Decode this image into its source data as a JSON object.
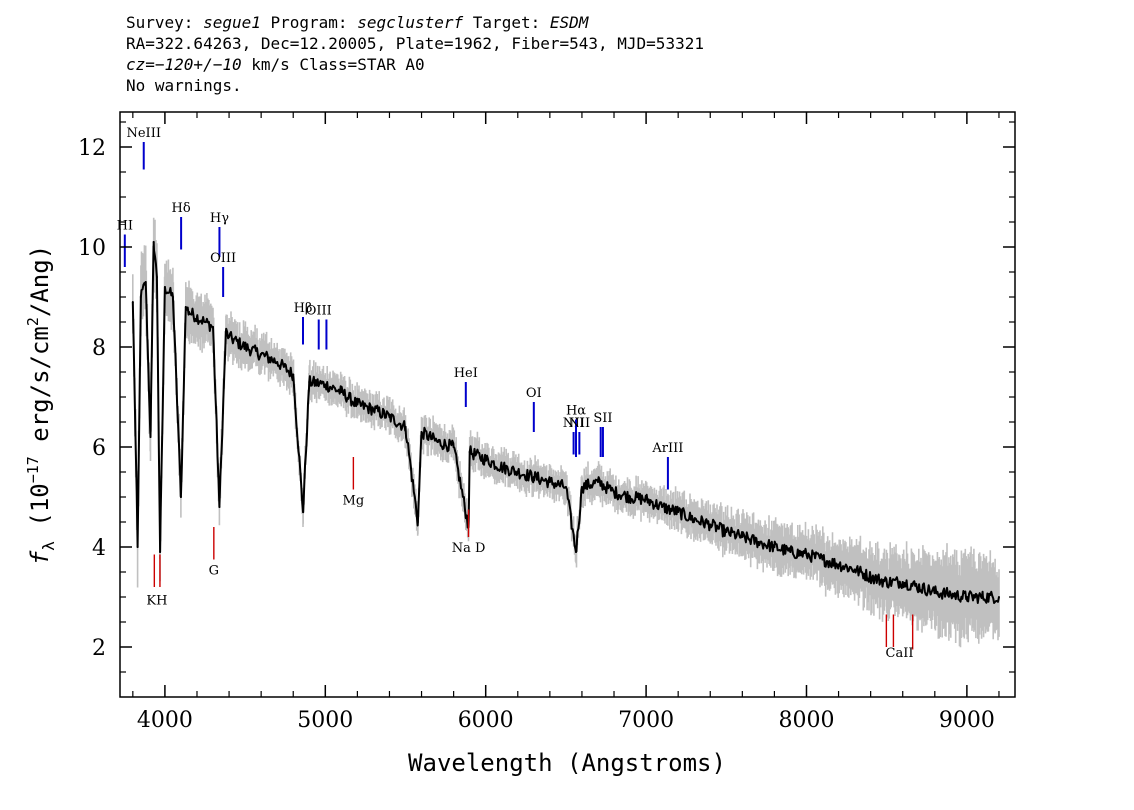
{
  "header": {
    "line1": {
      "survey_label": "Survey: ",
      "survey": "segue1",
      "program_label": " Program: ",
      "program": "segclusterf",
      "target_label": " Target: ",
      "target": "ESDM"
    },
    "line2": "RA=322.64263, Dec=12.20005, Plate=1962, Fiber=543, MJD=53321",
    "line3": {
      "cz": "cz=−120+/−10",
      "rest": " km/s Class=STAR A0"
    },
    "line4": "No warnings."
  },
  "colors": {
    "emission": "#0000cc",
    "absorption": "#cc0000",
    "flux": "#000000",
    "error": "#c0c0c0"
  },
  "chart_data": {
    "type": "line",
    "title": "",
    "xlabel": "Wavelength (Angstroms)",
    "ylabel": "fλ (10⁻¹⁷ erg/s/cm²/Ang)",
    "xlim": [
      3720,
      9300
    ],
    "ylim": [
      1,
      12.7
    ],
    "x_ticks": [
      4000,
      5000,
      6000,
      7000,
      8000,
      9000
    ],
    "y_ticks": [
      2,
      4,
      6,
      8,
      10,
      12
    ],
    "grid": false,
    "series": [
      {
        "role": "flux",
        "x": [
          3800,
          3830,
          3850,
          3880,
          3910,
          3930,
          3950,
          3970,
          4000,
          4050,
          4100,
          4130,
          4150,
          4200,
          4250,
          4300,
          4340,
          4380,
          4400,
          4500,
          4600,
          4700,
          4800,
          4861,
          4900,
          5000,
          5100,
          5200,
          5300,
          5400,
          5500,
          5577,
          5600,
          5700,
          5800,
          5893,
          5900,
          6000,
          6100,
          6200,
          6300,
          6400,
          6500,
          6563,
          6600,
          6700,
          6800,
          6900,
          7000,
          7100,
          7200,
          7300,
          7400,
          7500,
          7600,
          7700,
          7800,
          7900,
          8000,
          8100,
          8200,
          8300,
          8400,
          8500,
          8600,
          8700,
          8800,
          8900,
          9000,
          9100,
          9200
        ],
        "y": [
          8.9,
          4.0,
          9.0,
          9.3,
          6.2,
          10.1,
          9.4,
          3.9,
          9.2,
          9.0,
          5.0,
          8.8,
          8.7,
          8.6,
          8.5,
          8.4,
          4.8,
          8.3,
          8.2,
          8.0,
          7.85,
          7.7,
          7.45,
          4.7,
          7.3,
          7.25,
          7.1,
          6.85,
          6.75,
          6.6,
          6.4,
          4.5,
          6.3,
          6.1,
          6.0,
          4.4,
          5.9,
          5.75,
          5.6,
          5.5,
          5.4,
          5.3,
          5.2,
          3.9,
          5.2,
          5.3,
          5.1,
          5.0,
          4.95,
          4.8,
          4.7,
          4.55,
          4.45,
          4.3,
          4.2,
          4.1,
          4.0,
          3.9,
          3.85,
          3.75,
          3.65,
          3.55,
          3.4,
          3.3,
          3.3,
          3.2,
          3.1,
          3.05,
          3.0,
          3.0,
          3.0
        ]
      },
      {
        "role": "error",
        "x": [
          3800,
          3900,
          4000,
          4100,
          4200,
          4300,
          4400,
          4500,
          4600,
          4700,
          4800,
          4900,
          5000,
          5100,
          5200,
          5300,
          5400,
          5500,
          5600,
          5700,
          5800,
          5900,
          6000,
          6100,
          6200,
          6300,
          6400,
          6500,
          6600,
          6700,
          6800,
          6900,
          7000,
          7100,
          7200,
          7300,
          7400,
          7500,
          7600,
          7700,
          7800,
          7900,
          8000,
          8100,
          8200,
          8300,
          8400,
          8500,
          8600,
          8700,
          8800,
          8900,
          9000,
          9100,
          9200
        ],
        "y": [
          0.7,
          0.65,
          0.6,
          0.55,
          0.5,
          0.45,
          0.4,
          0.38,
          0.35,
          0.33,
          0.32,
          0.3,
          0.3,
          0.3,
          0.3,
          0.3,
          0.3,
          0.3,
          0.3,
          0.3,
          0.3,
          0.3,
          0.3,
          0.3,
          0.3,
          0.3,
          0.3,
          0.3,
          0.3,
          0.3,
          0.3,
          0.3,
          0.3,
          0.3,
          0.35,
          0.35,
          0.35,
          0.4,
          0.4,
          0.4,
          0.45,
          0.45,
          0.45,
          0.5,
          0.5,
          0.55,
          0.6,
          0.6,
          0.65,
          0.7,
          0.75,
          0.75,
          0.8,
          0.8,
          0.8
        ]
      }
    ],
    "emission_lines": [
      {
        "label": "HI",
        "x": 3750,
        "y_bottom": 9.6,
        "y_top": 10.25
      },
      {
        "label": "NeIII",
        "x": 3868,
        "y_bottom": 11.55,
        "y_top": 12.1
      },
      {
        "label": "Hδ",
        "x": 4101,
        "y_bottom": 9.95,
        "y_top": 10.6
      },
      {
        "label": "Hγ",
        "x": 4340,
        "y_bottom": 9.8,
        "y_top": 10.4
      },
      {
        "label": "OIII",
        "x": 4363,
        "y_bottom": 9.0,
        "y_top": 9.6
      },
      {
        "label": "Hβ",
        "x": 4861,
        "y_bottom": 8.05,
        "y_top": 8.6
      },
      {
        "label": "OIII",
        "x": 4959,
        "y_bottom": 7.95,
        "y_top": 8.55
      },
      {
        "label": "",
        "x": 5007,
        "y_bottom": 7.95,
        "y_top": 8.55
      },
      {
        "label": "HeI",
        "x": 5876,
        "y_bottom": 6.8,
        "y_top": 7.3
      },
      {
        "label": "OI",
        "x": 6300,
        "y_bottom": 6.3,
        "y_top": 6.9
      },
      {
        "label": "NII",
        "x": 6548,
        "y_bottom": 5.85,
        "y_top": 6.3
      },
      {
        "label": "Hα",
        "x": 6563,
        "y_bottom": 5.8,
        "y_top": 6.55
      },
      {
        "label": "NII",
        "x": 6584,
        "y_bottom": 5.85,
        "y_top": 6.3
      },
      {
        "label": "",
        "x": 6717,
        "y_bottom": 5.8,
        "y_top": 6.4
      },
      {
        "label": "SII",
        "x": 6731,
        "y_bottom": 5.8,
        "y_top": 6.4
      },
      {
        "label": "ArIII",
        "x": 7136,
        "y_bottom": 5.15,
        "y_top": 5.8
      }
    ],
    "absorption_lines": [
      {
        "label": "",
        "x": 3934,
        "y_bottom": 3.2,
        "y_top": 3.85
      },
      {
        "label": "",
        "x": 3969,
        "y_bottom": 3.2,
        "y_top": 3.85
      },
      {
        "label": "G",
        "x": 4305,
        "y_bottom": 3.75,
        "y_top": 4.4
      },
      {
        "label": "Mg",
        "x": 5175,
        "y_bottom": 5.15,
        "y_top": 5.8
      },
      {
        "label": "Na D",
        "x": 5893,
        "y_bottom": 4.2,
        "y_top": 4.75
      },
      {
        "label": "",
        "x": 8498,
        "y_bottom": 2.0,
        "y_top": 2.65
      },
      {
        "label": "",
        "x": 8542,
        "y_bottom": 2.0,
        "y_top": 2.65
      },
      {
        "label": "",
        "x": 8662,
        "y_bottom": 1.95,
        "y_top": 2.65
      }
    ],
    "group_labels": [
      {
        "label": "KH",
        "x": 3950,
        "y": 2.85
      },
      {
        "label": "CaII",
        "x": 8580,
        "y": 1.8
      }
    ]
  }
}
